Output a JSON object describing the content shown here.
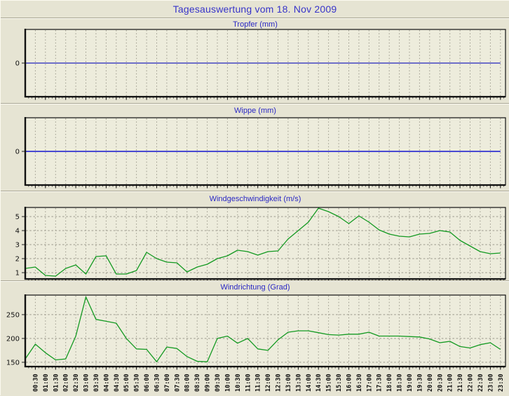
{
  "page": {
    "title": "Tagesauswertung vom 18. Nov 2009",
    "background_color": "#e6e4d3",
    "plot_background_color": "#edecdc",
    "grid_color": "#9c998b",
    "title_color": "#3734c9"
  },
  "x_axis": {
    "labels": [
      "00:30",
      "01:00",
      "01:30",
      "02:00",
      "02:30",
      "03:00",
      "03:30",
      "04:00",
      "04:30",
      "05:00",
      "05:30",
      "06:00",
      "06:30",
      "07:00",
      "07:30",
      "08:00",
      "08:30",
      "09:00",
      "09:30",
      "10:00",
      "10:30",
      "11:00",
      "11:30",
      "12:00",
      "12:30",
      "13:00",
      "13:30",
      "14:00",
      "14:30",
      "15:00",
      "15:30",
      "16:00",
      "16:30",
      "17:00",
      "17:30",
      "18:00",
      "18:30",
      "19:00",
      "19:30",
      "20:00",
      "20:30",
      "21:00",
      "21:30",
      "22:00",
      "22:30",
      "23:00",
      "23:30"
    ]
  },
  "chart_data": [
    {
      "type": "line",
      "title": "Tropfer (mm)",
      "line_color": "#2424bb",
      "line_width": 1.2,
      "yticks": [
        0
      ],
      "ylim": [
        -1,
        1
      ],
      "ygrid": false,
      "x_start": "00:00",
      "x_step_minutes": 30,
      "values": [
        0,
        0,
        0,
        0,
        0,
        0,
        0,
        0,
        0,
        0,
        0,
        0,
        0,
        0,
        0,
        0,
        0,
        0,
        0,
        0,
        0,
        0,
        0,
        0,
        0,
        0,
        0,
        0,
        0,
        0,
        0,
        0,
        0,
        0,
        0,
        0,
        0,
        0,
        0,
        0,
        0,
        0,
        0,
        0,
        0,
        0,
        0,
        0
      ]
    },
    {
      "type": "line",
      "title": "Wippe (mm)",
      "line_color": "#4949d2",
      "line_width": 2,
      "yticks": [
        0
      ],
      "ylim": [
        -1,
        1
      ],
      "ygrid": false,
      "x_start": "00:00",
      "x_step_minutes": 30,
      "values": [
        0,
        0,
        0,
        0,
        0,
        0,
        0,
        0,
        0,
        0,
        0,
        0,
        0,
        0,
        0,
        0,
        0,
        0,
        0,
        0,
        0,
        0,
        0,
        0,
        0,
        0,
        0,
        0,
        0,
        0,
        0,
        0,
        0,
        0,
        0,
        0,
        0,
        0,
        0,
        0,
        0,
        0,
        0,
        0,
        0,
        0,
        0,
        0
      ]
    },
    {
      "type": "line",
      "title": "Windgeschwindigkeit (m/s)",
      "line_color": "#149a22",
      "line_width": 1.3,
      "yticks": [
        1,
        2,
        3,
        4,
        5
      ],
      "ylim": [
        0.55,
        5.65
      ],
      "ygrid": true,
      "x_start": "00:00",
      "x_step_minutes": 30,
      "values": [
        1.3,
        1.4,
        0.8,
        0.75,
        1.3,
        1.55,
        0.9,
        2.15,
        2.2,
        0.9,
        0.9,
        1.15,
        2.45,
        2.0,
        1.75,
        1.7,
        1.05,
        1.4,
        1.6,
        2.0,
        2.2,
        2.6,
        2.5,
        2.25,
        2.5,
        2.55,
        3.4,
        4.0,
        4.6,
        5.6,
        5.35,
        5.0,
        4.5,
        5.05,
        4.6,
        4.05,
        3.75,
        3.6,
        3.55,
        3.75,
        3.8,
        4.0,
        3.9,
        3.3,
        2.9,
        2.5,
        2.35,
        2.4
      ]
    },
    {
      "type": "line",
      "title": "Windrichtung (Grad)",
      "line_color": "#149a22",
      "line_width": 1.3,
      "yticks": [
        150,
        200,
        250
      ],
      "ylim": [
        141,
        291
      ],
      "ygrid": true,
      "x_start": "00:00",
      "x_step_minutes": 30,
      "values": [
        157,
        188,
        170,
        155,
        157,
        205,
        287,
        240,
        236,
        232,
        200,
        178,
        177,
        151,
        182,
        179,
        162,
        152,
        151,
        200,
        205,
        190,
        200,
        178,
        175,
        197,
        213,
        216,
        216,
        212,
        208,
        207,
        209,
        209,
        213,
        205,
        205,
        205,
        204,
        203,
        199,
        191,
        194,
        183,
        180,
        187,
        191,
        177
      ]
    }
  ]
}
